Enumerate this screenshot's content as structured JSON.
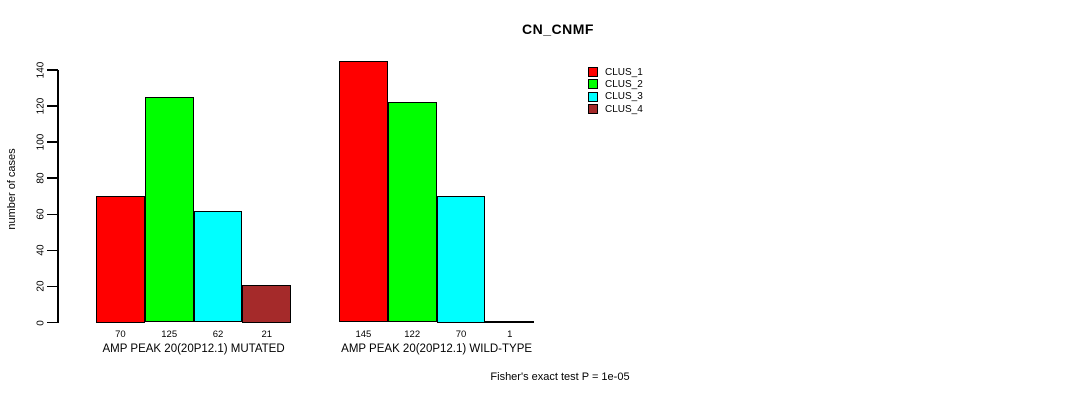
{
  "chart_data": {
    "type": "bar",
    "title": "CN_CNMF",
    "ylabel": "number of cases",
    "xlabel": "",
    "ylim": [
      0,
      145
    ],
    "yticks": [
      0,
      20,
      40,
      60,
      80,
      100,
      120,
      140
    ],
    "grid": false,
    "background": "#ffffff",
    "categories": [
      "AMP PEAK 20(20P12.1) MUTATED",
      "AMP PEAK 20(20P12.1) WILD-TYPE"
    ],
    "series": [
      {
        "name": "CLUS_1",
        "color": "#ff0000",
        "values": [
          70,
          145
        ]
      },
      {
        "name": "CLUS_2",
        "color": "#00ff00",
        "values": [
          125,
          122
        ]
      },
      {
        "name": "CLUS_3",
        "color": "#00ffff",
        "values": [
          62,
          70
        ]
      },
      {
        "name": "CLUS_4",
        "color": "#a52a2a",
        "values": [
          21,
          1
        ]
      }
    ],
    "bar_value_labels_shown": true,
    "legend": {
      "position": "top-right",
      "entries": [
        "CLUS_1",
        "CLUS_2",
        "CLUS_3",
        "CLUS_4"
      ]
    },
    "annotation": "Fisher's exact test P = 1e-05"
  }
}
